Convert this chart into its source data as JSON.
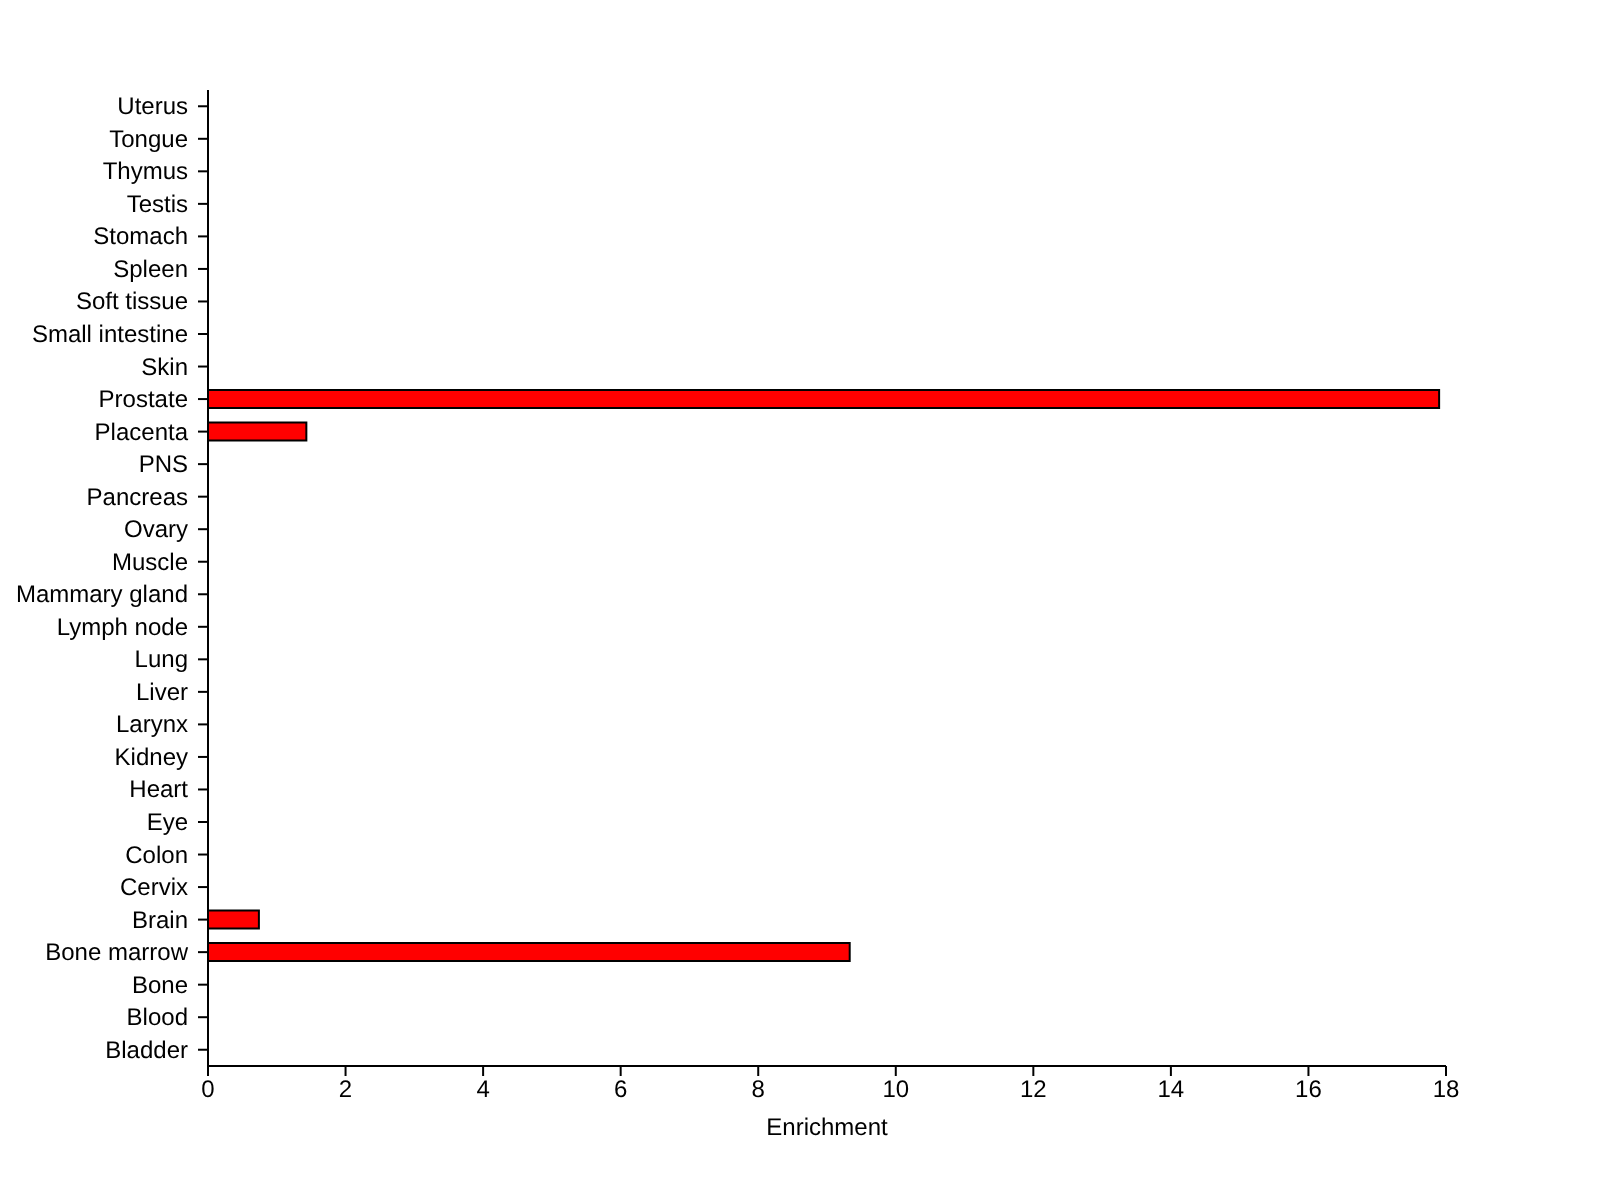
{
  "chart_data": {
    "type": "bar",
    "orientation": "horizontal",
    "xlabel": "Enrichment",
    "categories": [
      "Uterus",
      "Tongue",
      "Thymus",
      "Testis",
      "Stomach",
      "Spleen",
      "Soft tissue",
      "Small intestine",
      "Skin",
      "Prostate",
      "Placenta",
      "PNS",
      "Pancreas",
      "Ovary",
      "Muscle",
      "Mammary gland",
      "Lymph node",
      "Lung",
      "Liver",
      "Larynx",
      "Kidney",
      "Heart",
      "Eye",
      "Colon",
      "Cervix",
      "Brain",
      "Bone marrow",
      "Bone",
      "Blood",
      "Bladder"
    ],
    "values": [
      0,
      0,
      0,
      0,
      0,
      0,
      0,
      0,
      0,
      17.9,
      1.43,
      0,
      0,
      0,
      0,
      0,
      0,
      0,
      0,
      0,
      0,
      0,
      0,
      0,
      0,
      0.74,
      9.33,
      0,
      0,
      0
    ],
    "color": "#ff0000",
    "xlim": [
      0,
      18
    ],
    "xticks": [
      0,
      2,
      4,
      6,
      8,
      10,
      12,
      14,
      16,
      18
    ],
    "grid": false,
    "legend": false
  }
}
